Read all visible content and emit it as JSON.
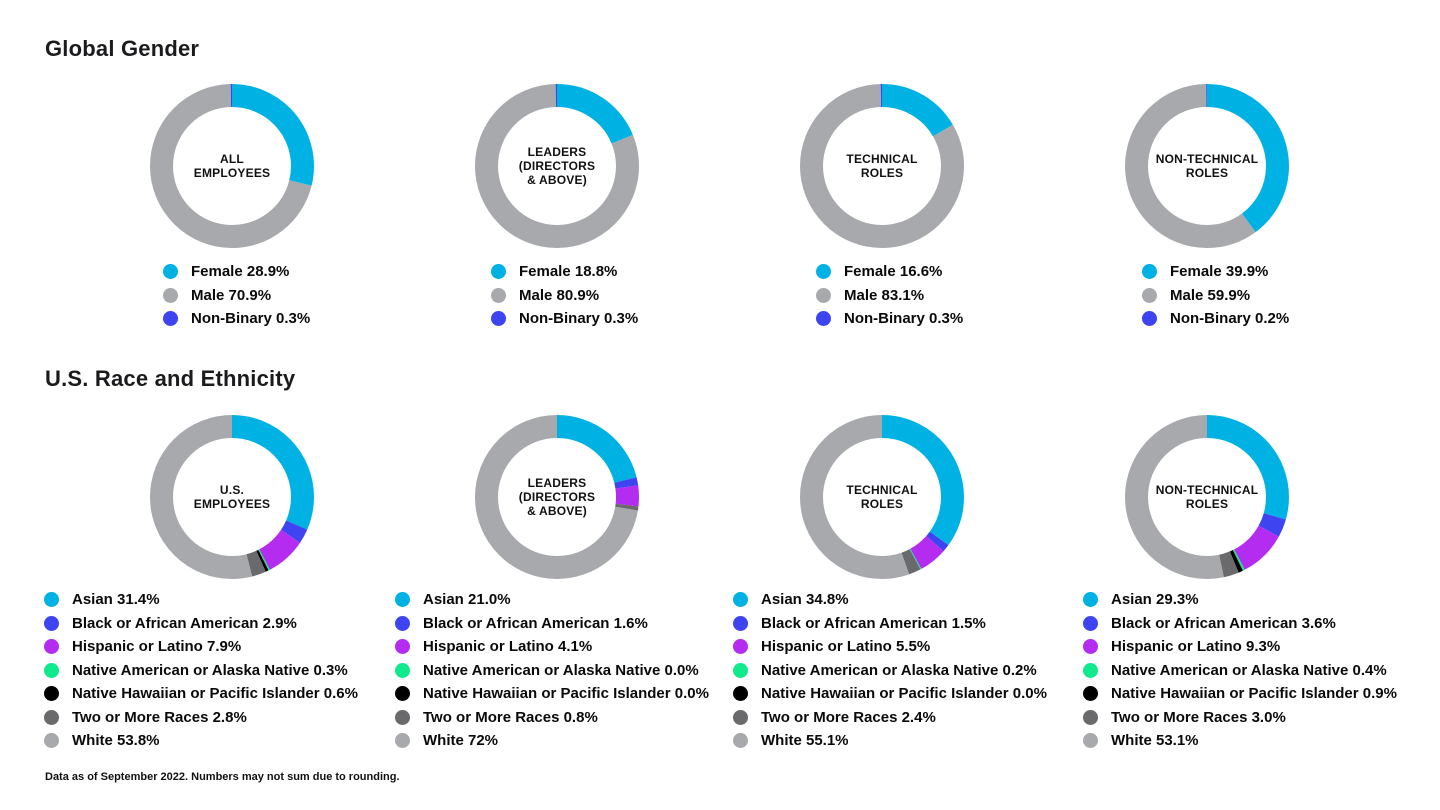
{
  "sections": [
    {
      "title": "Global Gender"
    },
    {
      "title": "U.S. Race and Ethnicity"
    }
  ],
  "footnote": "Data as of September 2022. Numbers may not sum due to rounding.",
  "palette": {
    "cyan": "#00B2E3",
    "gray": "#A7A9AC",
    "blue": "#3E45F0",
    "magenta": "#B32CF0",
    "green": "#10E98C",
    "black": "#000000",
    "dark_gray": "#6A6A6D"
  },
  "chart_data": [
    {
      "type": "pie",
      "subtype": "donut",
      "id": "gender-all-employees",
      "section": "Global Gender",
      "center_label": [
        "ALL",
        "EMPLOYEES"
      ],
      "segments": [
        {
          "label": "Female",
          "value": 28.9,
          "display": "Female 28.9%",
          "color": "#00B2E3"
        },
        {
          "label": "Male",
          "value": 70.9,
          "display": "Male 70.9%",
          "color": "#A7A9AC"
        },
        {
          "label": "Non-Binary",
          "value": 0.3,
          "display": "Non-Binary 0.3%",
          "color": "#3E45F0"
        }
      ]
    },
    {
      "type": "pie",
      "subtype": "donut",
      "id": "gender-leaders",
      "section": "Global Gender",
      "center_label": [
        "LEADERS",
        "(DIRECTORS",
        "& ABOVE)"
      ],
      "segments": [
        {
          "label": "Female",
          "value": 18.8,
          "display": "Female 18.8%",
          "color": "#00B2E3"
        },
        {
          "label": "Male",
          "value": 80.9,
          "display": "Male 80.9%",
          "color": "#A7A9AC"
        },
        {
          "label": "Non-Binary",
          "value": 0.3,
          "display": "Non-Binary 0.3%",
          "color": "#3E45F0"
        }
      ]
    },
    {
      "type": "pie",
      "subtype": "donut",
      "id": "gender-technical-roles",
      "section": "Global Gender",
      "center_label": [
        "TECHNICAL",
        "ROLES"
      ],
      "segments": [
        {
          "label": "Female",
          "value": 16.6,
          "display": "Female 16.6%",
          "color": "#00B2E3"
        },
        {
          "label": "Male",
          "value": 83.1,
          "display": "Male 83.1%",
          "color": "#A7A9AC"
        },
        {
          "label": "Non-Binary",
          "value": 0.3,
          "display": "Non-Binary 0.3%",
          "color": "#3E45F0"
        }
      ]
    },
    {
      "type": "pie",
      "subtype": "donut",
      "id": "gender-non-technical-roles",
      "section": "Global Gender",
      "center_label": [
        "NON-TECHNICAL",
        "ROLES"
      ],
      "segments": [
        {
          "label": "Female",
          "value": 39.9,
          "display": "Female 39.9%",
          "color": "#00B2E3"
        },
        {
          "label": "Male",
          "value": 59.9,
          "display": "Male 59.9%",
          "color": "#A7A9AC"
        },
        {
          "label": "Non-Binary",
          "value": 0.2,
          "display": "Non-Binary 0.2%",
          "color": "#3E45F0"
        }
      ]
    },
    {
      "type": "pie",
      "subtype": "donut",
      "id": "race-us-employees",
      "section": "U.S. Race and Ethnicity",
      "center_label": [
        "U.S.",
        "EMPLOYEES"
      ],
      "segments": [
        {
          "label": "Asian",
          "value": 31.4,
          "display": "Asian 31.4%",
          "color": "#00B2E3"
        },
        {
          "label": "Black or African American",
          "value": 2.9,
          "display": "Black or African American 2.9%",
          "color": "#3E45F0"
        },
        {
          "label": "Hispanic or Latino",
          "value": 7.9,
          "display": "Hispanic or Latino 7.9%",
          "color": "#B32CF0"
        },
        {
          "label": "Native American or Alaska Native",
          "value": 0.3,
          "display": "Native American or Alaska Native 0.3%",
          "color": "#10E98C"
        },
        {
          "label": "Native Hawaiian or Pacific Islander",
          "value": 0.6,
          "display": "Native Hawaiian or Pacific Islander 0.6%",
          "color": "#000000"
        },
        {
          "label": "Two or More Races",
          "value": 2.8,
          "display": "Two or More Races 2.8%",
          "color": "#6A6A6D"
        },
        {
          "label": "White",
          "value": 53.8,
          "display": "White 53.8%",
          "color": "#A7A9AC"
        }
      ]
    },
    {
      "type": "pie",
      "subtype": "donut",
      "id": "race-leaders",
      "section": "U.S. Race and Ethnicity",
      "center_label": [
        "LEADERS",
        "(DIRECTORS",
        "& ABOVE)"
      ],
      "segments": [
        {
          "label": "Asian",
          "value": 21.0,
          "display": "Asian 21.0%",
          "color": "#00B2E3"
        },
        {
          "label": "Black or African American",
          "value": 1.6,
          "display": "Black or African American 1.6%",
          "color": "#3E45F0"
        },
        {
          "label": "Hispanic or Latino",
          "value": 4.1,
          "display": "Hispanic or Latino 4.1%",
          "color": "#B32CF0"
        },
        {
          "label": "Native American or Alaska Native",
          "value": 0.0,
          "display": "Native American or Alaska Native 0.0%",
          "color": "#10E98C"
        },
        {
          "label": "Native Hawaiian or Pacific Islander",
          "value": 0.0,
          "display": "Native Hawaiian or Pacific Islander 0.0%",
          "color": "#000000"
        },
        {
          "label": "Two or More Races",
          "value": 0.8,
          "display": "Two or More Races 0.8%",
          "color": "#6A6A6D"
        },
        {
          "label": "White",
          "value": 72,
          "display": "White 72%",
          "color": "#A7A9AC"
        }
      ]
    },
    {
      "type": "pie",
      "subtype": "donut",
      "id": "race-technical-roles",
      "section": "U.S. Race and Ethnicity",
      "center_label": [
        "TECHNICAL",
        "ROLES"
      ],
      "segments": [
        {
          "label": "Asian",
          "value": 34.8,
          "display": "Asian 34.8%",
          "color": "#00B2E3"
        },
        {
          "label": "Black or African American",
          "value": 1.5,
          "display": "Black or African American 1.5%",
          "color": "#3E45F0"
        },
        {
          "label": "Hispanic or Latino",
          "value": 5.5,
          "display": "Hispanic or Latino 5.5%",
          "color": "#B32CF0"
        },
        {
          "label": "Native American or Alaska Native",
          "value": 0.2,
          "display": "Native American or Alaska Native 0.2%",
          "color": "#10E98C"
        },
        {
          "label": "Native Hawaiian or Pacific Islander",
          "value": 0.0,
          "display": "Native Hawaiian or Pacific Islander 0.0%",
          "color": "#000000"
        },
        {
          "label": "Two or More Races",
          "value": 2.4,
          "display": "Two or More Races 2.4%",
          "color": "#6A6A6D"
        },
        {
          "label": "White",
          "value": 55.1,
          "display": "White 55.1%",
          "color": "#A7A9AC"
        }
      ]
    },
    {
      "type": "pie",
      "subtype": "donut",
      "id": "race-non-technical-roles",
      "section": "U.S. Race and Ethnicity",
      "center_label": [
        "NON-TECHNICAL",
        "ROLES"
      ],
      "segments": [
        {
          "label": "Asian",
          "value": 29.3,
          "display": "Asian 29.3%",
          "color": "#00B2E3"
        },
        {
          "label": "Black or African American",
          "value": 3.6,
          "display": "Black or African American 3.6%",
          "color": "#3E45F0"
        },
        {
          "label": "Hispanic or Latino",
          "value": 9.3,
          "display": "Hispanic or Latino 9.3%",
          "color": "#B32CF0"
        },
        {
          "label": "Native American or Alaska Native",
          "value": 0.4,
          "display": "Native American or Alaska Native 0.4%",
          "color": "#10E98C"
        },
        {
          "label": "Native Hawaiian or Pacific Islander",
          "value": 0.9,
          "display": "Native Hawaiian or Pacific Islander 0.9%",
          "color": "#000000"
        },
        {
          "label": "Two or More Races",
          "value": 3.0,
          "display": "Two or More Races 3.0%",
          "color": "#6A6A6D"
        },
        {
          "label": "White",
          "value": 53.1,
          "display": "White 53.1%",
          "color": "#A7A9AC"
        }
      ]
    }
  ]
}
